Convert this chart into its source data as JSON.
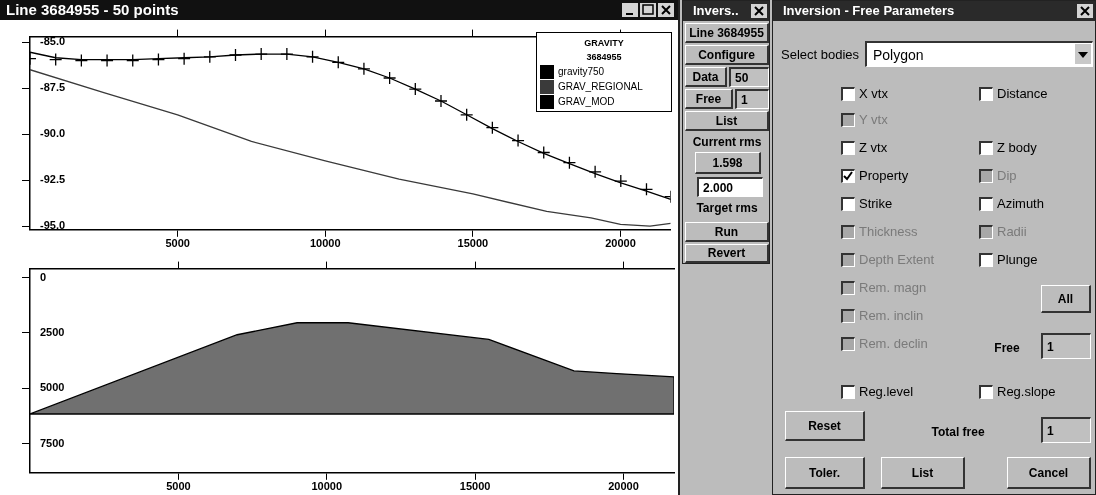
{
  "chart_data": [
    {
      "type": "line",
      "title": "Line 3684955 - 50 points",
      "legend_title": "GRAVITY\n3684955",
      "legend": "top right",
      "grid": false,
      "xlim": [
        0,
        21700
      ],
      "xticks": [
        5000,
        10000,
        15000,
        20000
      ],
      "ylim": [
        -95.2,
        -84.7
      ],
      "yticks": [
        {
          "value": -85,
          "label": "-85.0"
        },
        -87.5,
        {
          "value": -90,
          "label": "-90.0"
        },
        -92.5,
        {
          "value": -95,
          "label": "-95.0"
        }
      ],
      "series": [
        {
          "name": "gravity750",
          "type": "scatter",
          "marker": "cross",
          "color": "#000000",
          "x": [
            0,
            870,
            1740,
            2610,
            3480,
            4350,
            5220,
            6090,
            6960,
            7830,
            8700,
            9570,
            10440,
            11310,
            12180,
            13050,
            13920,
            14790,
            15660,
            16530,
            17400,
            18270,
            19140,
            20010,
            20880,
            21700
          ],
          "values": [
            -85.9,
            -85.95,
            -86.0,
            -86.0,
            -86.0,
            -85.95,
            -85.9,
            -85.8,
            -85.7,
            -85.65,
            -85.65,
            -85.8,
            -86.1,
            -86.45,
            -86.95,
            -87.55,
            -88.2,
            -88.95,
            -89.65,
            -90.35,
            -91.0,
            -91.55,
            -92.05,
            -92.55,
            -93.0,
            -93.4
          ]
        },
        {
          "name": "GRAV_REGIONAL",
          "marker": "none",
          "color": "#3a3a3a",
          "x": [
            0,
            2500,
            5000,
            7500,
            10000,
            12500,
            15000,
            17500,
            19000,
            20000,
            21000,
            21700
          ],
          "values": [
            -86.5,
            -87.75,
            -88.95,
            -90.4,
            -91.45,
            -92.45,
            -93.25,
            -94.2,
            -94.55,
            -94.9,
            -95.0,
            -94.85
          ]
        },
        {
          "name": "GRAV_MOD",
          "marker": "none",
          "color": "#000000",
          "x": [
            0,
            870,
            1740,
            2610,
            3480,
            4350,
            5220,
            6090,
            6960,
            7830,
            8700,
            9570,
            10440,
            11310,
            12180,
            13050,
            13920,
            14790,
            15660,
            16530,
            17400,
            18270,
            19140,
            20010,
            20880,
            21700
          ],
          "values": [
            -85.55,
            -85.85,
            -85.95,
            -85.95,
            -85.95,
            -85.9,
            -85.85,
            -85.8,
            -85.7,
            -85.65,
            -85.65,
            -85.8,
            -86.1,
            -86.45,
            -86.95,
            -87.55,
            -88.2,
            -88.95,
            -89.7,
            -90.4,
            -91.05,
            -91.6,
            -92.15,
            -92.65,
            -93.1,
            -93.55
          ]
        }
      ]
    },
    {
      "type": "area",
      "grid": false,
      "xlim": [
        0,
        21700
      ],
      "xticks": [
        5000,
        10000,
        15000,
        20000
      ],
      "ylim": [
        8800,
        -400
      ],
      "yticks": [
        0,
        2500,
        5000,
        7500
      ],
      "series": [
        {
          "color": "#707070",
          "x": [
            0,
            6980,
            9000,
            10720,
            15460,
            18330,
            19770,
            21700,
            21700,
            0
          ],
          "values": [
            6150,
            2580,
            2040,
            2040,
            2790,
            4210,
            4330,
            4480,
            6150,
            6150
          ]
        }
      ]
    },
    {
      "type": "other",
      "title": "Invers..",
      "annotations": [
        "Line 3684955",
        "Configure",
        "Data",
        "50",
        "Free",
        "1",
        "List",
        "Current rms",
        "1.598",
        "2.000",
        "Target rms",
        "Run",
        "Revert"
      ]
    },
    {
      "type": "other",
      "title": "Inversion - Free Parameters",
      "annotations": [
        "Select bodies",
        "Polygon",
        "X vtx",
        "Distance",
        "Y vtx",
        "Z vtx",
        "Z body",
        "Property",
        "Dip",
        "Strike",
        "Azimuth",
        "Thickness",
        "Radii",
        "Depth Extent",
        "Plunge",
        "Rem. magn",
        "All",
        "Rem. inclin",
        "Rem. declin",
        "Free",
        "1",
        "Reg.level",
        "Reg.slope",
        "Reset",
        "Total free",
        "1",
        "Toler.",
        "List",
        "Cancel"
      ]
    }
  ]
}
